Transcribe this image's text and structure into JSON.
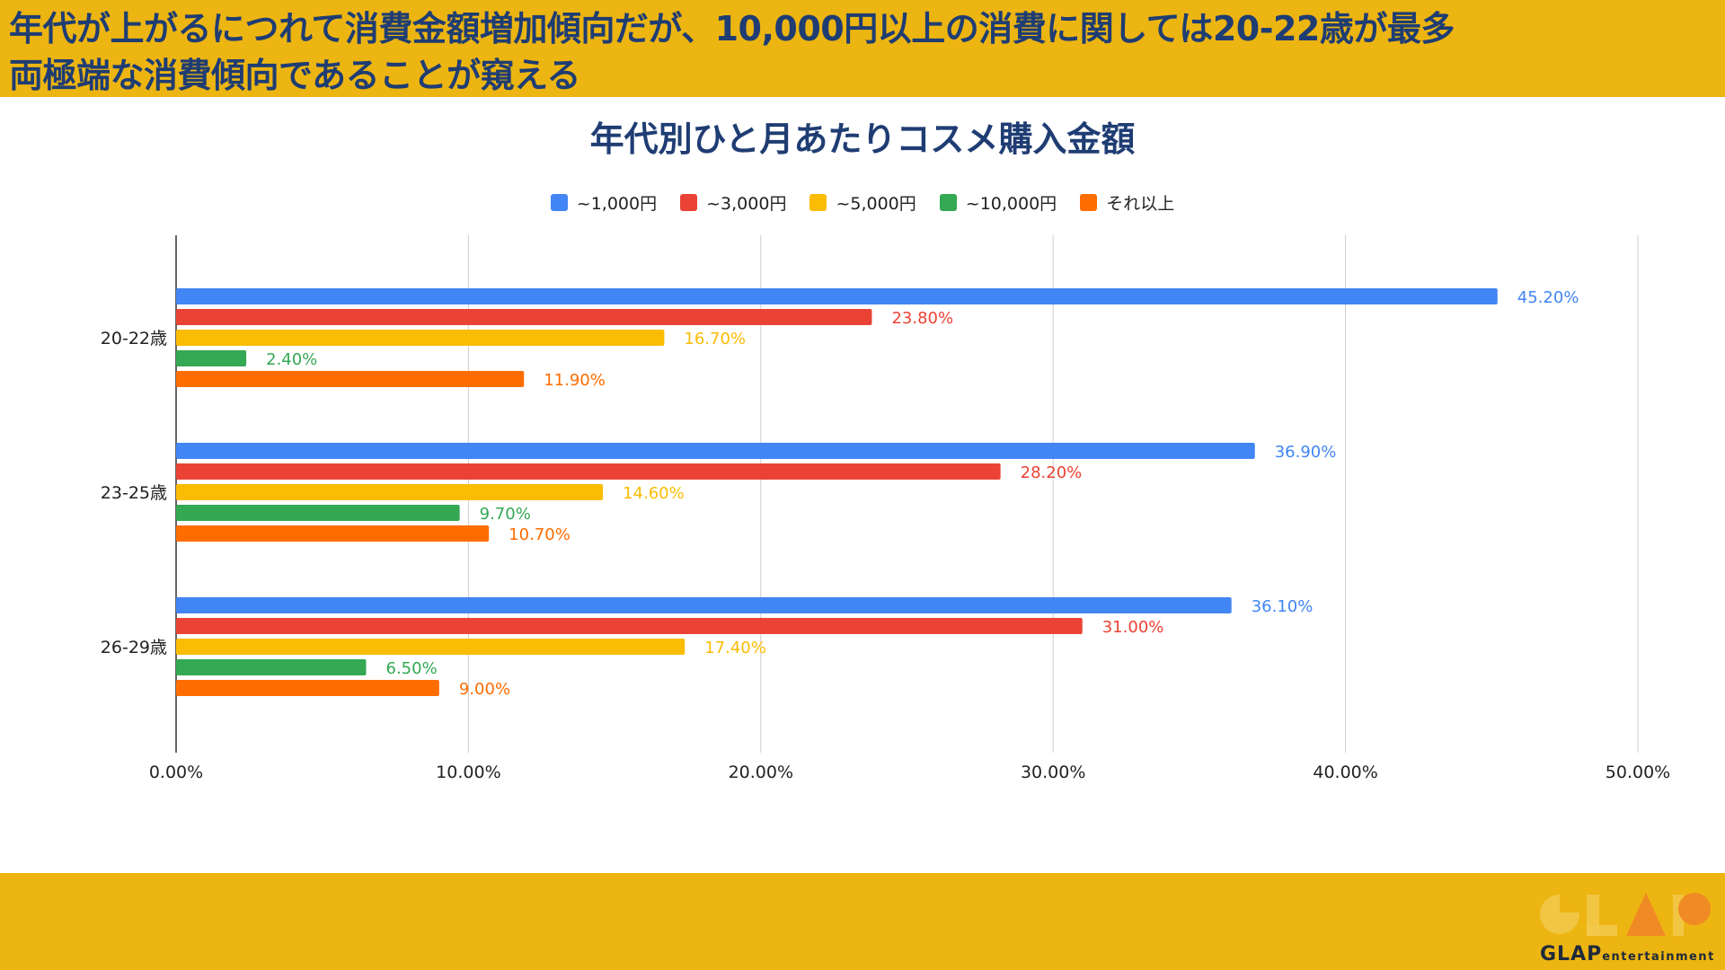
{
  "header": {
    "line1": "年代が上がるにつれて消費金額増加傾向だが、10,000円以上の消費に関しては20-22歳が最多",
    "line2": "両極端な消費傾向であることが窺える"
  },
  "logo": {
    "brand": "GLAP",
    "suffix": "entertainment"
  },
  "colors": {
    "band": "#edb511",
    "title": "#1f3d73",
    "grid": "#cccccc",
    "axis": "#333333"
  },
  "chart_data": {
    "type": "bar",
    "orientation": "horizontal",
    "title": "年代別ひと月あたりコスメ購入金額",
    "categories": [
      "20-22歳",
      "23-25歳",
      "26-29歳"
    ],
    "series": [
      {
        "name": "~1,000円",
        "color": "#4285f4",
        "values": [
          45.2,
          36.9,
          36.1
        ],
        "labels": [
          "45.20%",
          "36.90%",
          "36.10%"
        ]
      },
      {
        "name": "~3,000円",
        "color": "#ea4335",
        "values": [
          23.8,
          28.2,
          31.0
        ],
        "labels": [
          "23.80%",
          "28.20%",
          "31.00%"
        ]
      },
      {
        "name": "~5,000円",
        "color": "#fbbc04",
        "values": [
          16.7,
          14.6,
          17.4
        ],
        "labels": [
          "16.70%",
          "14.60%",
          "17.40%"
        ]
      },
      {
        "name": "~10,000円",
        "color": "#34a853",
        "values": [
          2.4,
          9.7,
          6.5
        ],
        "labels": [
          "2.40%",
          "9.70%",
          "6.50%"
        ]
      },
      {
        "name": "それ以上",
        "color": "#ff6d01",
        "values": [
          11.9,
          10.7,
          9.0
        ],
        "labels": [
          "11.90%",
          "10.70%",
          "9.00%"
        ]
      }
    ],
    "xlim": [
      0,
      50
    ],
    "xticks": [
      0,
      10,
      20,
      30,
      40,
      50
    ],
    "xtick_labels": [
      "0.00%",
      "10.00%",
      "20.00%",
      "30.00%",
      "40.00%",
      "50.00%"
    ],
    "grid": true,
    "legend_position": "top-center"
  }
}
